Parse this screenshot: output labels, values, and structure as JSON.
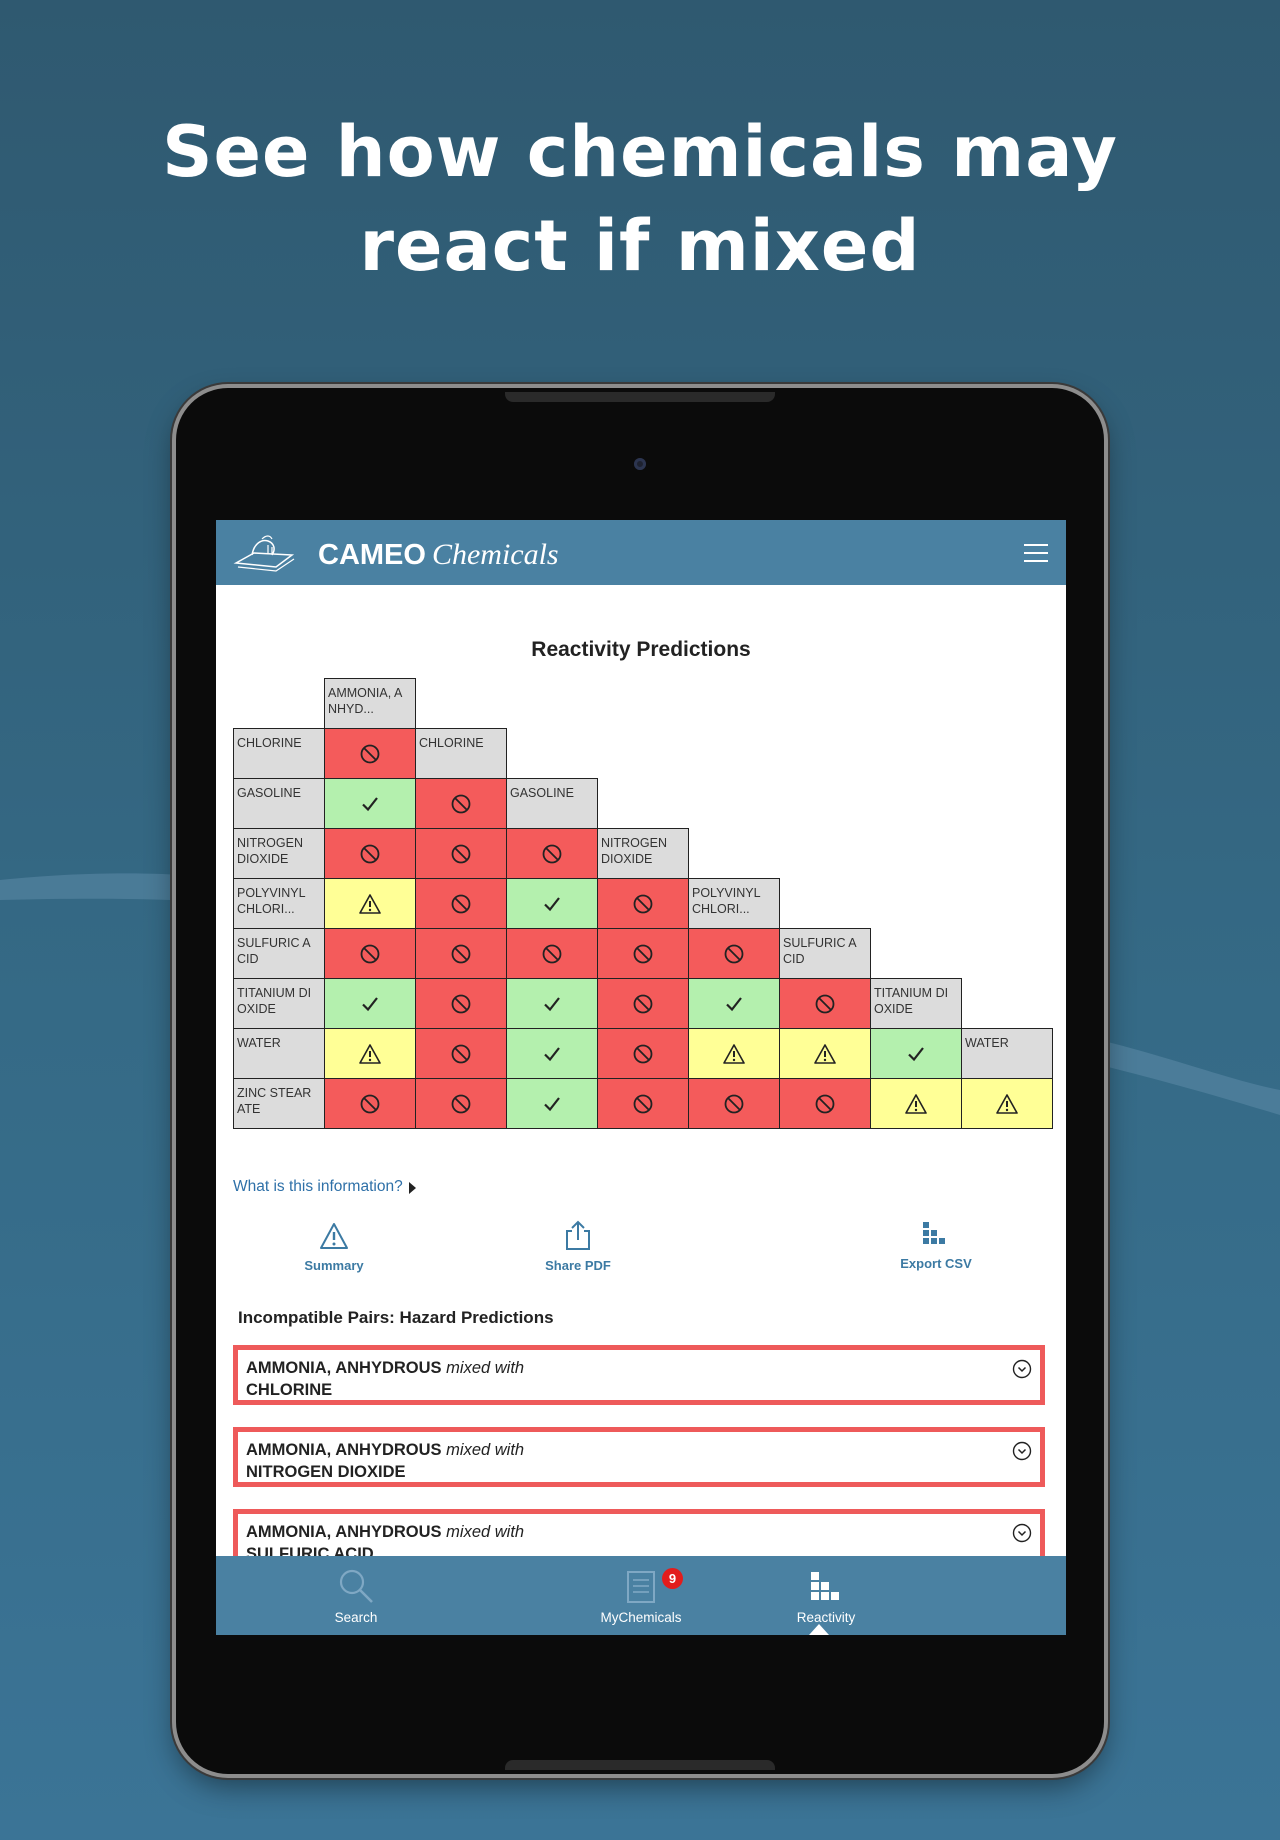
{
  "headline": {
    "line1": "See how chemicals may",
    "line2": "react if mixed"
  },
  "app": {
    "brand_bold": "CAMEO",
    "brand_italic": "Chemicals"
  },
  "page": {
    "title": "Reactivity Predictions"
  },
  "matrix": {
    "labels": [
      [
        "AMMONIA, A",
        "NHYD..."
      ],
      [
        "CHLORINE"
      ],
      [
        "GASOLINE"
      ],
      [
        "NITROGEN",
        "DIOXIDE"
      ],
      [
        "POLYVINYL",
        "CHLORI..."
      ],
      [
        "SULFURIC A",
        "CID"
      ],
      [
        "TITANIUM DI",
        "OXIDE"
      ],
      [
        "WATER"
      ],
      [
        "ZINC STEAR",
        "ATE"
      ]
    ],
    "rows": [
      [
        "incompatible"
      ],
      [
        "compatible",
        "incompatible"
      ],
      [
        "incompatible",
        "incompatible",
        "incompatible"
      ],
      [
        "caution",
        "incompatible",
        "compatible",
        "incompatible"
      ],
      [
        "incompatible",
        "incompatible",
        "incompatible",
        "incompatible",
        "incompatible"
      ],
      [
        "compatible",
        "incompatible",
        "compatible",
        "incompatible",
        "compatible",
        "incompatible"
      ],
      [
        "caution",
        "incompatible",
        "compatible",
        "incompatible",
        "caution",
        "caution",
        "compatible"
      ],
      [
        "incompatible",
        "incompatible",
        "compatible",
        "incompatible",
        "incompatible",
        "incompatible",
        "caution",
        "caution"
      ]
    ],
    "legend_colors": {
      "incompatible": "#f45b5b",
      "compatible": "#b4f0ae",
      "caution": "#ffff96",
      "label": "#dcdcdc"
    }
  },
  "info_link": "What is this information?",
  "actions": {
    "summary": "Summary",
    "share_pdf": "Share PDF",
    "export_csv": "Export CSV"
  },
  "incompatible": {
    "title": "Incompatible Pairs: Hazard Predictions",
    "mixed_with": "mixed with",
    "pairs": [
      {
        "a": "AMMONIA, ANHYDROUS",
        "b": "CHLORINE"
      },
      {
        "a": "AMMONIA, ANHYDROUS",
        "b": "NITROGEN DIOXIDE"
      },
      {
        "a": "AMMONIA, ANHYDROUS",
        "b": "SULFURIC ACID"
      }
    ]
  },
  "tabbar": {
    "search": "Search",
    "mychemicals": "MyChemicals",
    "mychemicals_badge": "9",
    "reactivity": "Reactivity"
  },
  "colors": {
    "header": "#4a81a2",
    "link": "#2e70a8",
    "pair_border": "#ee5a5a",
    "badge": "#e21c1c"
  }
}
